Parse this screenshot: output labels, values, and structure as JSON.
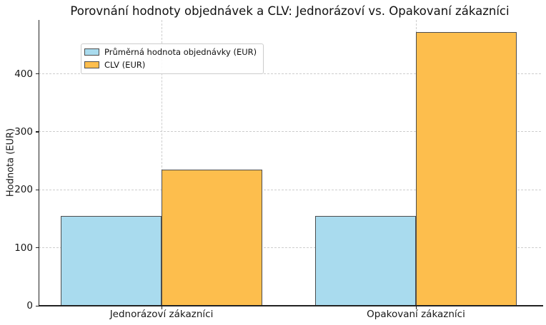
{
  "chart_data": {
    "type": "bar",
    "title": "Porovnání hodnoty objednávek a CLV: Jednorázoví vs. Opakovaní zákazníci",
    "categories": [
      "Jednorázoví zákazníci",
      "Opakovaní zákazníci"
    ],
    "series": [
      {
        "name": "Průměrná hodnota objednávky (EUR)",
        "color": "#A9DBEE",
        "values": [
          155,
          155
        ]
      },
      {
        "name": "CLV (EUR)",
        "color": "#FDBE4D",
        "values": [
          235,
          472
        ]
      }
    ],
    "xlabel": "",
    "ylabel": "Hodnota (EUR)",
    "ylim": [
      0,
      493
    ],
    "yticks": [
      0,
      100,
      200,
      300,
      400
    ],
    "grid": true,
    "grid_style": "dashed",
    "legend_position": "upper left",
    "bar_edge_color": "#4d4d4d",
    "gridline_color": "#cdcdcd",
    "background_color": "#ffffff"
  }
}
